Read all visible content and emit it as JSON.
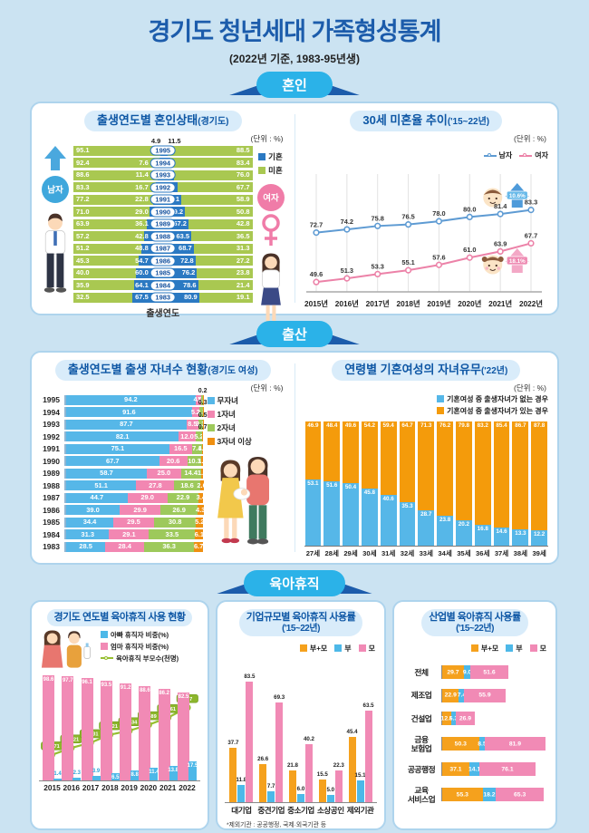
{
  "page": {
    "title": "경기도 청년세대 가족형성통계",
    "subtitle": "(2022년 기준, 1983-95년생)"
  },
  "banners": {
    "marriage": "혼인",
    "birth": "출산",
    "leave": "육아휴직"
  },
  "colors": {
    "background": "#cbe3f2",
    "title_blue": "#1c5cab",
    "banner_cyan": "#2bb2e8",
    "banner_navy": "#1c5cab",
    "married_blue": "#2b79c2",
    "single_green": "#a9c851",
    "male_line": "#5e9bd3",
    "female_line": "#ec82a8",
    "no_child_blue": "#56b7e8",
    "one_child_pink": "#f287b2",
    "two_child_green": "#9dc95b",
    "three_child_orange": "#ef8f10",
    "has_child_orange": "#f49b0b",
    "mom_pink": "#f18ab5",
    "dad_blue": "#4db8e8",
    "parents_green": "#96bf31",
    "both_orange": "#f5a11d"
  },
  "chart_data": [
    {
      "id": "marriage-status-by-birth-year",
      "type": "bar",
      "variant": "mirrored-horizontal-stacked",
      "title": "출생연도별 혼인상태",
      "title_note": "(경기도)",
      "unit": "(단위 : %)",
      "xlabel": "출생연도",
      "left_axis_label": "남자",
      "right_axis_label": "여자",
      "legend": [
        {
          "label": "기혼",
          "color": "#2b79c2"
        },
        {
          "label": "미혼",
          "color": "#a9c851"
        }
      ],
      "rows": [
        {
          "year": "1995",
          "male_single": 95.1,
          "male_married": 4.9,
          "female_married": 11.5,
          "female_single": 88.5
        },
        {
          "year": "1994",
          "male_single": 92.4,
          "male_married": 7.6,
          "female_married": 16.5,
          "female_single": 83.4
        },
        {
          "year": "1993",
          "male_single": 88.6,
          "male_married": 11.4,
          "female_married": 24.0,
          "female_single": 76.0
        },
        {
          "year": "1992",
          "male_single": 83.3,
          "male_married": 16.7,
          "female_married": 32.3,
          "female_single": 67.7
        },
        {
          "year": "1991",
          "male_single": 77.2,
          "male_married": 22.8,
          "female_married": 41.1,
          "female_single": 58.9
        },
        {
          "year": "1990",
          "male_single": 71.0,
          "male_married": 29.0,
          "female_married": 49.2,
          "female_single": 50.8
        },
        {
          "year": "1989",
          "male_single": 63.9,
          "male_married": 36.1,
          "female_married": 57.2,
          "female_single": 42.8
        },
        {
          "year": "1988",
          "male_single": 57.2,
          "male_married": 42.8,
          "female_married": 63.5,
          "female_single": 36.5
        },
        {
          "year": "1987",
          "male_single": 51.2,
          "male_married": 48.8,
          "female_married": 68.7,
          "female_single": 31.3
        },
        {
          "year": "1986",
          "male_single": 45.3,
          "male_married": 54.7,
          "female_married": 72.8,
          "female_single": 27.2
        },
        {
          "year": "1985",
          "male_single": 40.0,
          "male_married": 60.0,
          "female_married": 76.2,
          "female_single": 23.8
        },
        {
          "year": "1984",
          "male_single": 35.9,
          "male_married": 64.1,
          "female_married": 78.6,
          "female_single": 21.4
        },
        {
          "year": "1983",
          "male_single": 32.5,
          "male_married": 67.5,
          "female_married": 80.9,
          "female_single": 19.1
        }
      ]
    },
    {
      "id": "unmarried-rate-at-30-trend",
      "type": "line",
      "title": "30세 미혼율 추이",
      "title_note": "('15~22년)",
      "unit": "(단위 : %)",
      "categories": [
        "2015년",
        "2016년",
        "2017년",
        "2018년",
        "2019년",
        "2020년",
        "2021년",
        "2022년"
      ],
      "ylim": [
        45,
        95
      ],
      "grid": "vertical",
      "series": [
        {
          "name": "남자",
          "color": "#5e9bd3",
          "values": [
            72.7,
            74.2,
            75.8,
            76.5,
            78.0,
            80.0,
            81.4,
            83.3
          ]
        },
        {
          "name": "여자",
          "color": "#ec82a8",
          "values": [
            49.6,
            51.3,
            53.3,
            55.1,
            57.6,
            61.0,
            63.9,
            67.7
          ]
        }
      ],
      "annotations": [
        {
          "text": "10.6%",
          "series": "남자"
        },
        {
          "text": "18.1%",
          "series": "여자"
        }
      ]
    },
    {
      "id": "children-count-by-birth-year",
      "type": "bar",
      "variant": "horizontal-stacked",
      "title": "출생연도별 출생 자녀수 현황",
      "title_note": "(경기도 여성)",
      "unit": "(단위 : %)",
      "colors": [
        "#56b7e8",
        "#f287b2",
        "#9dc95b",
        "#ef8f10"
      ],
      "categories": [
        "1995",
        "1994",
        "1993",
        "1992",
        "1991",
        "1990",
        "1989",
        "1988",
        "1987",
        "1986",
        "1985",
        "1984",
        "1983"
      ],
      "series": [
        {
          "name": "무자녀",
          "values": [
            94.2,
            91.6,
            87.7,
            82.1,
            75.1,
            67.7,
            58.7,
            51.1,
            44.7,
            39.0,
            34.4,
            31.3,
            28.5
          ]
        },
        {
          "name": "1자녀",
          "values": [
            4.0,
            5.7,
            8.5,
            12.0,
            16.5,
            20.6,
            25.0,
            27.8,
            29.0,
            29.9,
            29.5,
            29.1,
            28.4
          ]
        },
        {
          "name": "2자녀",
          "values": [
            1.5,
            2.3,
            3.3,
            5.2,
            7.4,
            10.3,
            14.4,
            18.6,
            22.9,
            26.9,
            30.8,
            33.5,
            36.3
          ]
        },
        {
          "name": "3자녀 이상",
          "values": [
            0.2,
            0.3,
            0.5,
            0.7,
            1.0,
            1.4,
            1.9,
            2.6,
            3.4,
            4.3,
            5.2,
            6.1,
            6.7
          ]
        }
      ]
    },
    {
      "id": "married-women-children-by-age",
      "type": "bar",
      "variant": "vertical-stacked",
      "title": "연령별 기혼여성의 자녀유무",
      "title_note": "('22년)",
      "unit": "(단위 : %)",
      "categories": [
        "27세",
        "28세",
        "29세",
        "30세",
        "31세",
        "32세",
        "33세",
        "34세",
        "35세",
        "36세",
        "37세",
        "38세",
        "39세"
      ],
      "series": [
        {
          "name": "기혼여성 중 출생자녀가 없는 경우",
          "color": "#56b7e8",
          "values": [
            53.1,
            51.6,
            50.4,
            45.8,
            40.6,
            35.3,
            28.7,
            23.8,
            20.2,
            16.8,
            14.6,
            13.3,
            12.2
          ]
        },
        {
          "name": "기혼여성 중 출생자녀가 있는 경우",
          "color": "#f49b0b",
          "values": [
            46.9,
            48.4,
            49.6,
            54.2,
            59.4,
            64.7,
            71.3,
            76.2,
            79.8,
            83.2,
            85.4,
            86.7,
            87.8
          ]
        }
      ]
    },
    {
      "id": "parental-leave-by-year",
      "type": "bar",
      "variant": "bar-line-combo",
      "title": "경기도 연도별 육아휴직 사용 현황",
      "legend": [
        {
          "label": "아빠 휴직자 비중(%)",
          "color": "#4db8e8",
          "shape": "square"
        },
        {
          "label": "엄마 휴직자 비중(%)",
          "color": "#f18ab5",
          "shape": "square"
        },
        {
          "label": "육아휴직 부모수(천명)",
          "color": "#96bf31",
          "shape": "line"
        }
      ],
      "categories": [
        "2015",
        "2016",
        "2017",
        "2018",
        "2019",
        "2020",
        "2021",
        "2022"
      ],
      "mom_values": [
        98.6,
        97.7,
        96.1,
        93.5,
        91.2,
        88.6,
        86.2,
        82.5
      ],
      "dad_values": [
        1.4,
        2.3,
        3.9,
        6.5,
        8.8,
        11.4,
        13.8,
        17.5
      ],
      "parent_count_labels": [
        "24,071",
        "30,621",
        "35,631",
        "43,121",
        "46,934",
        "52,489",
        "59,261",
        "68.7"
      ],
      "parent_count_values": [
        24.1,
        30.6,
        35.6,
        43.1,
        46.9,
        52.5,
        59.3,
        68.7
      ]
    },
    {
      "id": "leave-usage-by-company-size",
      "type": "bar",
      "variant": "grouped-vertical",
      "title": "기업규모별 육아휴직 사용률",
      "title_note": "('15~22년)",
      "categories": [
        "대기업",
        "중견기업",
        "중소기업",
        "소상공인",
        "제외기관"
      ],
      "series": [
        {
          "name": "부+모",
          "color": "#f5a11d",
          "values": [
            37.7,
            26.6,
            21.8,
            15.5,
            45.4
          ]
        },
        {
          "name": "부",
          "color": "#4db8e8",
          "values": [
            11.8,
            7.7,
            6.0,
            5.0,
            15.1
          ]
        },
        {
          "name": "모",
          "color": "#f18ab5",
          "values": [
            83.5,
            69.3,
            40.2,
            22.3,
            63.5
          ]
        }
      ],
      "footnote": "*제외기관 : 공공행정, 국제·외국기관 등"
    },
    {
      "id": "leave-usage-by-industry",
      "type": "bar",
      "variant": "horizontal-grouped",
      "title": "산업별 육아휴직 사용률",
      "title_note": "('15~22년)",
      "categories": [
        "전체",
        "제조업",
        "건설업",
        "금융\n보험업",
        "공공행정",
        "교육\n서비스업"
      ],
      "series": [
        {
          "name": "부+모",
          "color": "#f5a11d",
          "values": [
            29.7,
            22.9,
            12.8,
            50.3,
            37.1,
            55.3
          ]
        },
        {
          "name": "부",
          "color": "#4db8e8",
          "values": [
            9.0,
            7.4,
            5.3,
            8.5,
            14.1,
            18.2
          ]
        },
        {
          "name": "모",
          "color": "#f18ab5",
          "values": [
            51.6,
            55.9,
            26.9,
            81.9,
            76.1,
            65.3
          ]
        }
      ]
    }
  ]
}
